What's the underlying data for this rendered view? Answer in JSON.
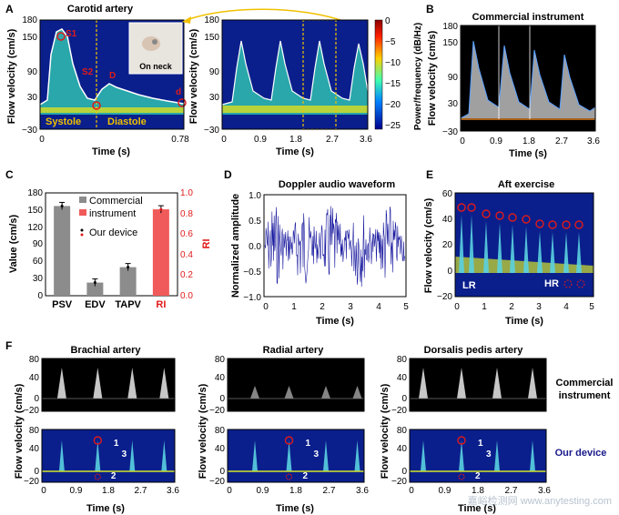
{
  "panel_letters": [
    "A",
    "B",
    "C",
    "D",
    "E",
    "F"
  ],
  "panelA": {
    "title": "Carotid artery",
    "ylabel": "Flow velocity (cm/s)",
    "xlabel": "Time (s)",
    "left_yticks": [
      "180",
      "150",
      "90",
      "30",
      "−30"
    ],
    "left_xticks": [
      "0",
      "0.78"
    ],
    "inset_label": "On neck",
    "labels": {
      "s1": "S1",
      "s2": "S2",
      "d": "D",
      "small_d": "d",
      "systole": "Systole",
      "diastole": "Diastole"
    },
    "right_yticks": [
      "180",
      "150",
      "90",
      "30",
      "−30"
    ],
    "right_xticks": [
      "0",
      "0.9",
      "1.8",
      "2.7",
      "3.6"
    ],
    "colorbar_label": "Power/frequency (dB/Hz)",
    "colorbar_ticks": [
      "0",
      "−5",
      "−10",
      "−15",
      "−20",
      "−25"
    ]
  },
  "panelB": {
    "title": "Commercial instrument",
    "ylabel": "Flow velocity (cm/s)",
    "xlabel": "Time (s)",
    "yticks": [
      "180",
      "150",
      "90",
      "30",
      "−30"
    ],
    "xticks": [
      "0",
      "0.9",
      "1.8",
      "2.7",
      "3.6"
    ]
  },
  "panelC": {
    "ylabel": "Value (cm/s)",
    "ylabel2": "RI",
    "yticks": [
      "0",
      "30",
      "60",
      "90",
      "120",
      "150",
      "180"
    ],
    "yticks2": [
      "0.0",
      "0.2",
      "0.4",
      "0.6",
      "0.8",
      "1.0"
    ],
    "legend_commercial": "Commercial",
    "legend_instrument": "instrument",
    "legend_ours": "Our device",
    "chart_data": {
      "type": "bar",
      "categories": [
        "PSV",
        "EDV",
        "TAPV",
        "RI"
      ],
      "values": [
        157,
        23,
        50,
        0.84
      ],
      "ylim": [
        0,
        180
      ],
      "ylim2": [
        0,
        1.0
      ]
    }
  },
  "panelD": {
    "title": "Doppler audio waveform",
    "ylabel": "Normalized amplitude",
    "xlabel": "Time (s)",
    "yticks": [
      "1.0",
      "0.5",
      "0.0",
      "−0.5",
      "−1.0"
    ],
    "xticks": [
      "0",
      "1",
      "2",
      "3",
      "4",
      "5"
    ]
  },
  "panelE": {
    "title": "Aft exercise",
    "ylabel": "Flow velocity (cm/s)",
    "xlabel": "Time (s)",
    "yticks": [
      "60",
      "40",
      "20",
      "0",
      "−20"
    ],
    "xticks": [
      "0",
      "1",
      "2",
      "3",
      "4",
      "5"
    ],
    "lr_label": "LR",
    "hr_label": "HR"
  },
  "panelF": {
    "titles": [
      "Brachial artery",
      "Radial artery",
      "Dorsalis pedis artery"
    ],
    "ylabel": "Flow velocity (cm/s)",
    "xlabel": "Time (s)",
    "top_yticks": [
      "80",
      "40",
      "0",
      "−20"
    ],
    "bottom_yticks": [
      "80",
      "40",
      "0",
      "−20"
    ],
    "xticks": [
      "0",
      "0.9",
      "1.8",
      "2.7",
      "3.6"
    ],
    "marks": [
      "1",
      "2",
      "3"
    ],
    "right_label_1": "Commercial",
    "right_label_2": "instrument",
    "right_label_ours": "Our device"
  },
  "colors": {
    "spectrogram_bg": "#0a1f8c",
    "commercial_bar": "#8c8c8c",
    "ri_bar": "#f05a5a",
    "marker_red": "#e01a1a",
    "dashed_yellow": "#f0c000",
    "waveform_blue": "#1a1aa0"
  },
  "watermark": "嘉峪检测网 www.anytesting.com"
}
